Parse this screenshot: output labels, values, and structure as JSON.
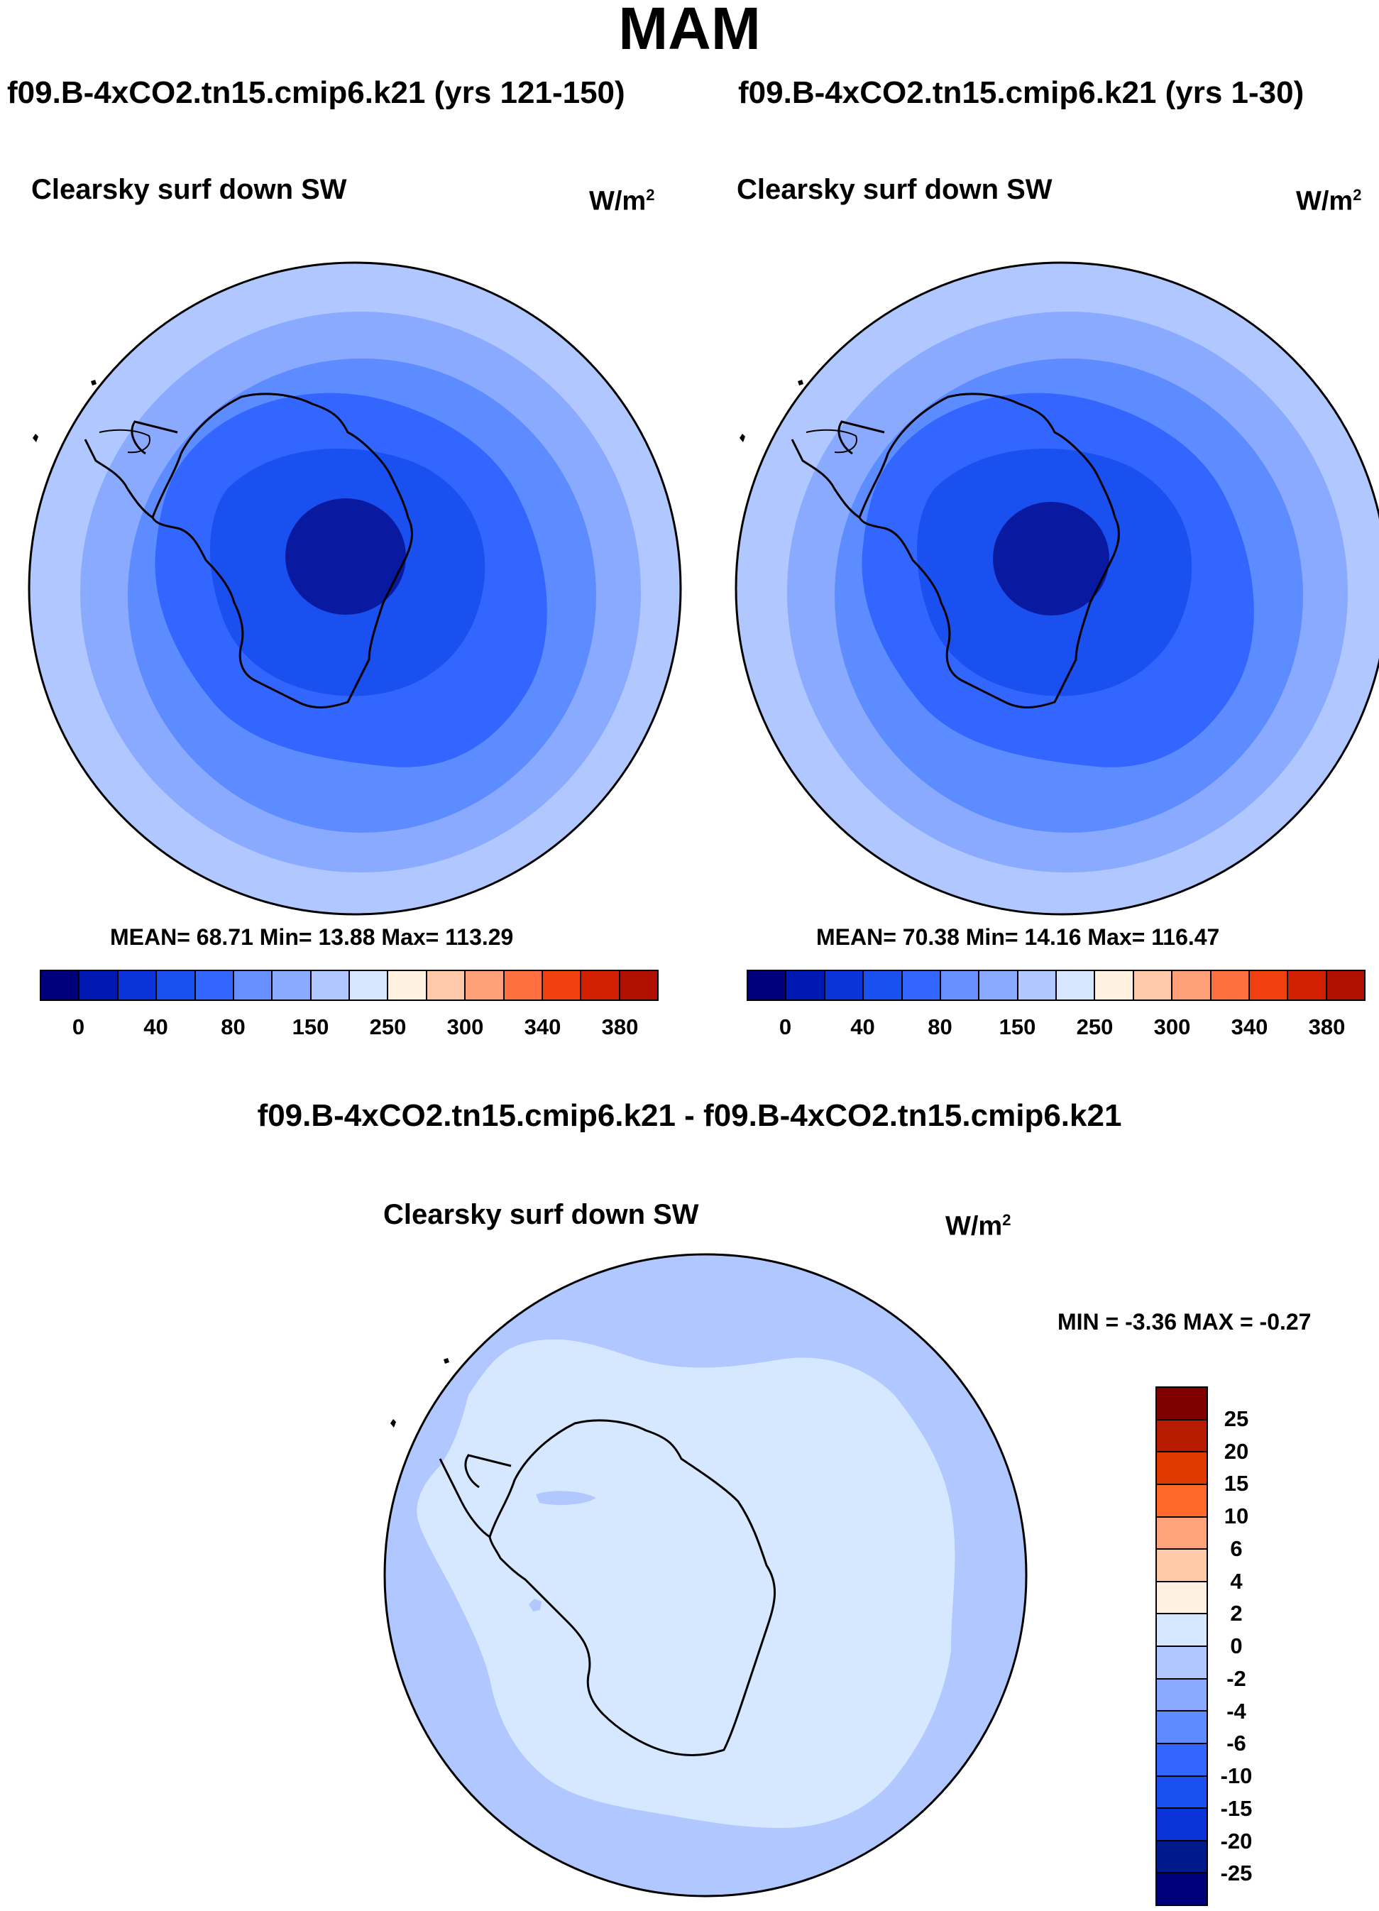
{
  "title": "MAM",
  "panels": [
    {
      "case_title": "f09.B-4xCO2.tn15.cmip6.k21 (yrs 121-150)",
      "field_title": "Clearsky surf down SW",
      "units": "W/m",
      "units_exp": "2",
      "stats": "MEAN=  68.71  Min=  13.88  Max= 113.29"
    },
    {
      "case_title": "f09.B-4xCO2.tn15.cmip6.k21 (yrs 1-30)",
      "field_title": "Clearsky surf down SW",
      "units": "W/m",
      "units_exp": "2",
      "stats": "MEAN=  70.38  Min=  14.16  Max= 116.47"
    }
  ],
  "diff_panel": {
    "case_title": "f09.B-4xCO2.tn15.cmip6.k21 - f09.B-4xCO2.tn15.cmip6.k21",
    "field_title": "Clearsky surf down SW",
    "units": "W/m",
    "units_exp": "2",
    "stats": "MIN =  -3.36 MAX =  -0.27"
  },
  "colors": {
    "abs_colorbar": [
      "#00007a",
      "#0019b3",
      "#0a33d9",
      "#1a4ff0",
      "#3366ff",
      "#6690ff",
      "#8aaaff",
      "#b0c8ff",
      "#d6e6ff",
      "#fff0e0",
      "#ffc8a8",
      "#ffa07a",
      "#ff7040",
      "#f04010",
      "#d02000",
      "#b01000",
      "#800000"
    ],
    "diff_colorbar": [
      "#800000",
      "#b81c00",
      "#e03a00",
      "#ff6a2a",
      "#ffa47a",
      "#ffcaa8",
      "#fff0e0",
      "#d6e8ff",
      "#b0c8ff",
      "#8aaaff",
      "#5c8cff",
      "#3366ff",
      "#1a4ff0",
      "#0a33d9",
      "#001a8c"
    ],
    "ocean_land_outline": "#000000"
  },
  "chart_data": [
    {
      "type": "heatmap",
      "projection": "south-polar-stereographic",
      "title": "Clearsky surf down SW",
      "subtitle": "f09.B-4xCO2.tn15.cmip6.k21 (yrs 121-150)",
      "units": "W/m2",
      "mean": 68.71,
      "min": 13.88,
      "max": 113.29,
      "colorbar_ticks": [
        "0",
        "40",
        "80",
        "150",
        "250",
        "300",
        "340",
        "380"
      ],
      "contour_levels": [
        0,
        20,
        40,
        60,
        80,
        100,
        150,
        200,
        250,
        275,
        300,
        320,
        340,
        360,
        380,
        400
      ],
      "zonal_bands_from_pole": [
        {
          "lat_range": [
            -90,
            -82
          ],
          "value_range": [
            0,
            20
          ]
        },
        {
          "lat_range": [
            -82,
            -74
          ],
          "value_range": [
            20,
            40
          ]
        },
        {
          "lat_range": [
            -74,
            -66
          ],
          "value_range": [
            40,
            60
          ]
        },
        {
          "lat_range": [
            -66,
            -58
          ],
          "value_range": [
            60,
            80
          ]
        },
        {
          "lat_range": [
            -58,
            -52
          ],
          "value_range": [
            80,
            100
          ]
        },
        {
          "lat_range": [
            -52,
            -45
          ],
          "value_range": [
            100,
            150
          ]
        }
      ]
    },
    {
      "type": "heatmap",
      "projection": "south-polar-stereographic",
      "title": "Clearsky surf down SW",
      "subtitle": "f09.B-4xCO2.tn15.cmip6.k21 (yrs 1-30)",
      "units": "W/m2",
      "mean": 70.38,
      "min": 14.16,
      "max": 116.47,
      "colorbar_ticks": [
        "0",
        "40",
        "80",
        "150",
        "250",
        "300",
        "340",
        "380"
      ],
      "contour_levels": [
        0,
        20,
        40,
        60,
        80,
        100,
        150,
        200,
        250,
        275,
        300,
        320,
        340,
        360,
        380,
        400
      ],
      "zonal_bands_from_pole": [
        {
          "lat_range": [
            -90,
            -82
          ],
          "value_range": [
            0,
            20
          ]
        },
        {
          "lat_range": [
            -82,
            -74
          ],
          "value_range": [
            20,
            40
          ]
        },
        {
          "lat_range": [
            -74,
            -66
          ],
          "value_range": [
            40,
            60
          ]
        },
        {
          "lat_range": [
            -66,
            -58
          ],
          "value_range": [
            60,
            80
          ]
        },
        {
          "lat_range": [
            -58,
            -52
          ],
          "value_range": [
            80,
            100
          ]
        },
        {
          "lat_range": [
            -52,
            -45
          ],
          "value_range": [
            100,
            150
          ]
        }
      ]
    },
    {
      "type": "heatmap",
      "projection": "south-polar-stereographic",
      "title": "Clearsky surf down SW",
      "subtitle": "f09.B-4xCO2.tn15.cmip6.k21 - f09.B-4xCO2.tn15.cmip6.k21",
      "units": "W/m2",
      "min": -3.36,
      "max": -0.27,
      "colorbar_ticks": [
        "25",
        "20",
        "15",
        "10",
        "6",
        "4",
        "2",
        "0",
        "-2",
        "-4",
        "-6",
        "-10",
        "-15",
        "-20",
        "-25"
      ],
      "regions": [
        {
          "area": "Antarctic continent and near coast",
          "value_range": [
            -2,
            0
          ]
        },
        {
          "area": "outer ring, lat north of about -58",
          "value_range": [
            -4,
            -2
          ]
        }
      ]
    }
  ]
}
